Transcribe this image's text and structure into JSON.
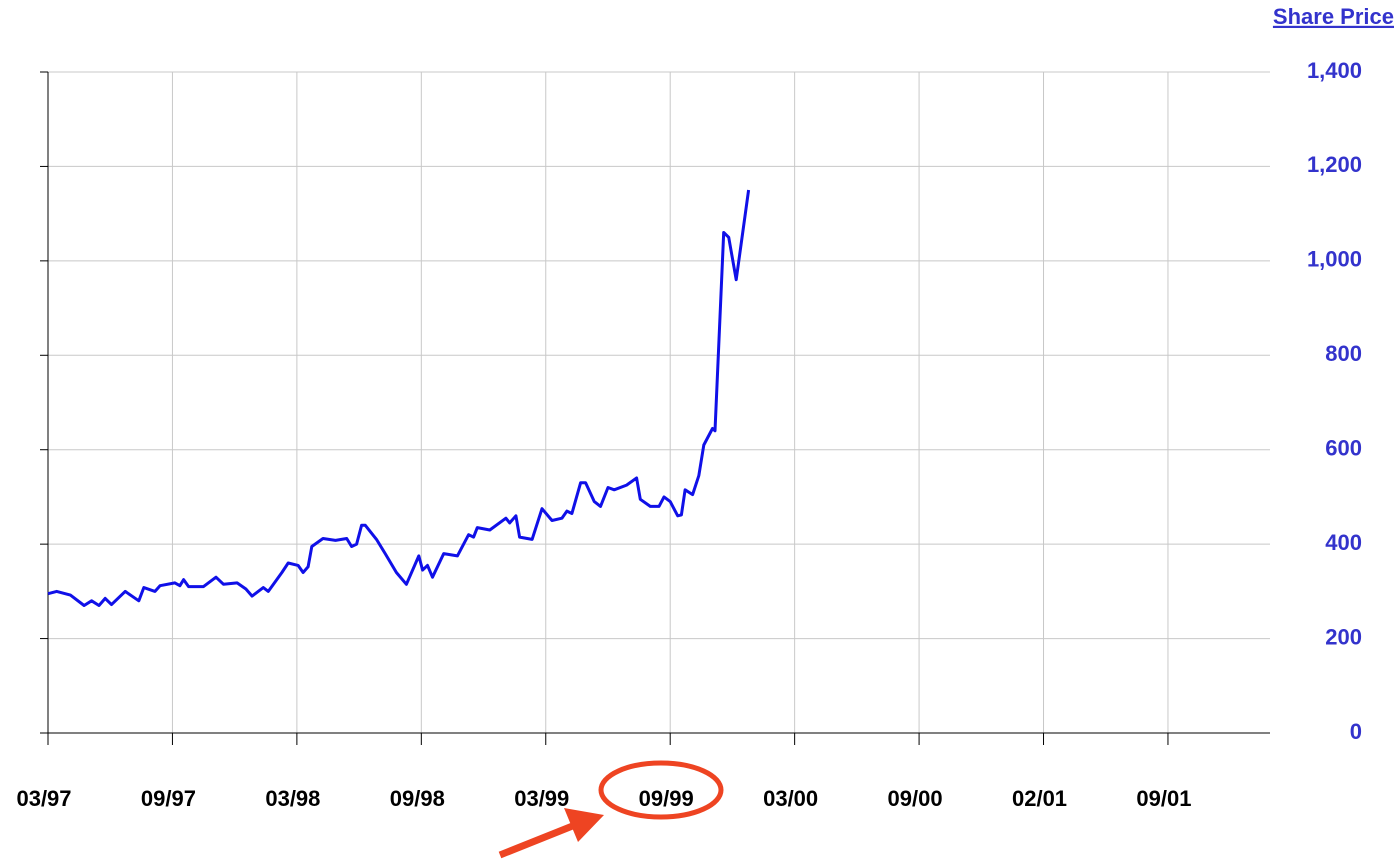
{
  "chart_data": {
    "type": "line",
    "title": "Share Price",
    "xlim": [
      0,
      9.82
    ],
    "xticks": [
      {
        "value": 0,
        "label": "03/97"
      },
      {
        "value": 1,
        "label": "09/97"
      },
      {
        "value": 2,
        "label": "03/98"
      },
      {
        "value": 3,
        "label": "09/98"
      },
      {
        "value": 4,
        "label": "03/99"
      },
      {
        "value": 5,
        "label": "09/99"
      },
      {
        "value": 6,
        "label": "03/00"
      },
      {
        "value": 7,
        "label": "09/00"
      },
      {
        "value": 8,
        "label": "02/01"
      },
      {
        "value": 9,
        "label": "09/01"
      }
    ],
    "y2lim": [
      0,
      1400
    ],
    "y2ticks": [
      0,
      200,
      400,
      600,
      800,
      {
        "value": 1000,
        "label": "1,000"
      },
      {
        "value": 1200,
        "label": "1,200"
      },
      {
        "value": 1400,
        "label": "1,400"
      }
    ],
    "grid": true,
    "series": [
      {
        "color": "#1010e8",
        "axis": "y2",
        "x": [
          0,
          0.07,
          0.18,
          0.29,
          0.35,
          0.41,
          0.46,
          0.51,
          0.62,
          0.73,
          0.77,
          0.86,
          0.9,
          1.02,
          1.06,
          1.09,
          1.13,
          1.25,
          1.35,
          1.41,
          1.52,
          1.59,
          1.64,
          1.73,
          1.77,
          1.88,
          1.93,
          2.01,
          2.05,
          2.09,
          2.12,
          2.21,
          2.31,
          2.4,
          2.44,
          2.48,
          2.52,
          2.55,
          2.64,
          2.71,
          2.8,
          2.88,
          2.98,
          3.01,
          3.05,
          3.09,
          3.18,
          3.29,
          3.38,
          3.42,
          3.45,
          3.55,
          3.68,
          3.71,
          3.76,
          3.79,
          3.89,
          3.97,
          4.05,
          4.13,
          4.17,
          4.21,
          4.28,
          4.32,
          4.39,
          4.44,
          4.5,
          4.55,
          4.65,
          4.73,
          4.76,
          4.84,
          4.91,
          4.95,
          5.0,
          5.06,
          5.09,
          5.12,
          5.18,
          5.23,
          5.27,
          5.34,
          5.36,
          5.43,
          5.47,
          5.53,
          5.63
        ],
        "values": [
          295,
          300,
          292,
          270,
          280,
          270,
          285,
          272,
          300,
          280,
          308,
          300,
          312,
          318,
          312,
          325,
          310,
          310,
          330,
          315,
          318,
          305,
          290,
          308,
          300,
          340,
          360,
          355,
          340,
          352,
          395,
          412,
          408,
          412,
          395,
          400,
          440,
          440,
          410,
          380,
          340,
          315,
          375,
          345,
          355,
          330,
          380,
          375,
          420,
          415,
          435,
          430,
          455,
          445,
          460,
          415,
          410,
          475,
          450,
          455,
          470,
          465,
          530,
          530,
          490,
          480,
          520,
          515,
          525,
          540,
          495,
          480,
          480,
          500,
          490,
          460,
          462,
          515,
          505,
          545,
          610,
          645,
          640,
          1060,
          1050,
          960,
          1150
        ]
      }
    ]
  }
}
